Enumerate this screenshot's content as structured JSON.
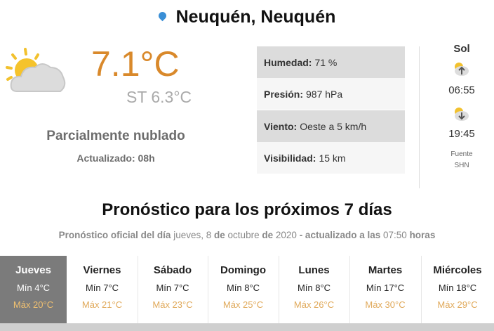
{
  "location": {
    "title": "Neuquén, Neuquén",
    "icon": "map-pin-icon"
  },
  "current": {
    "icon": "partly-cloudy-icon",
    "temperature": "7.1°C",
    "feels_like": "ST 6.3°C",
    "condition": "Parcialmente nublado",
    "updated": "Actualizado: 08h",
    "temp_color": "#d9892b"
  },
  "details": [
    {
      "label": "Humedad:",
      "value": "71 %"
    },
    {
      "label": "Presión:",
      "value": "987 hPa"
    },
    {
      "label": "Viento:",
      "value": "Oeste a 5 km/h"
    },
    {
      "label": "Visibilidad:",
      "value": "15 km"
    }
  ],
  "sun": {
    "title": "Sol",
    "sunrise_icon": "sunrise-icon",
    "sunrise": "06:55",
    "sunset_icon": "sunset-icon",
    "sunset": "19:45",
    "source_label": "Fuente",
    "source": "SHN"
  },
  "forecast": {
    "heading": "Pronóstico para los próximos 7 días",
    "subtitle": {
      "p1": "Pronóstico oficial del día",
      "p2": "jueves, 8",
      "p3": "de",
      "p4": "octubre",
      "p5": "de",
      "p6": "2020",
      "p7": "- actualizado a las",
      "p8": "07:50",
      "p9": "horas"
    },
    "days": [
      {
        "name": "Jueves",
        "min": "Mín 4°C",
        "max": "Máx 20°C",
        "selected": true
      },
      {
        "name": "Viernes",
        "min": "Mín 7°C",
        "max": "Máx 21°C"
      },
      {
        "name": "Sábado",
        "min": "Mín 7°C",
        "max": "Máx 23°C"
      },
      {
        "name": "Domingo",
        "min": "Mín 8°C",
        "max": "Máx 25°C"
      },
      {
        "name": "Lunes",
        "min": "Mín 8°C",
        "max": "Máx 26°C"
      },
      {
        "name": "Martes",
        "min": "Mín 17°C",
        "max": "Máx 30°C"
      },
      {
        "name": "Miércoles",
        "min": "Mín 18°C",
        "max": "Máx 29°C"
      }
    ]
  }
}
